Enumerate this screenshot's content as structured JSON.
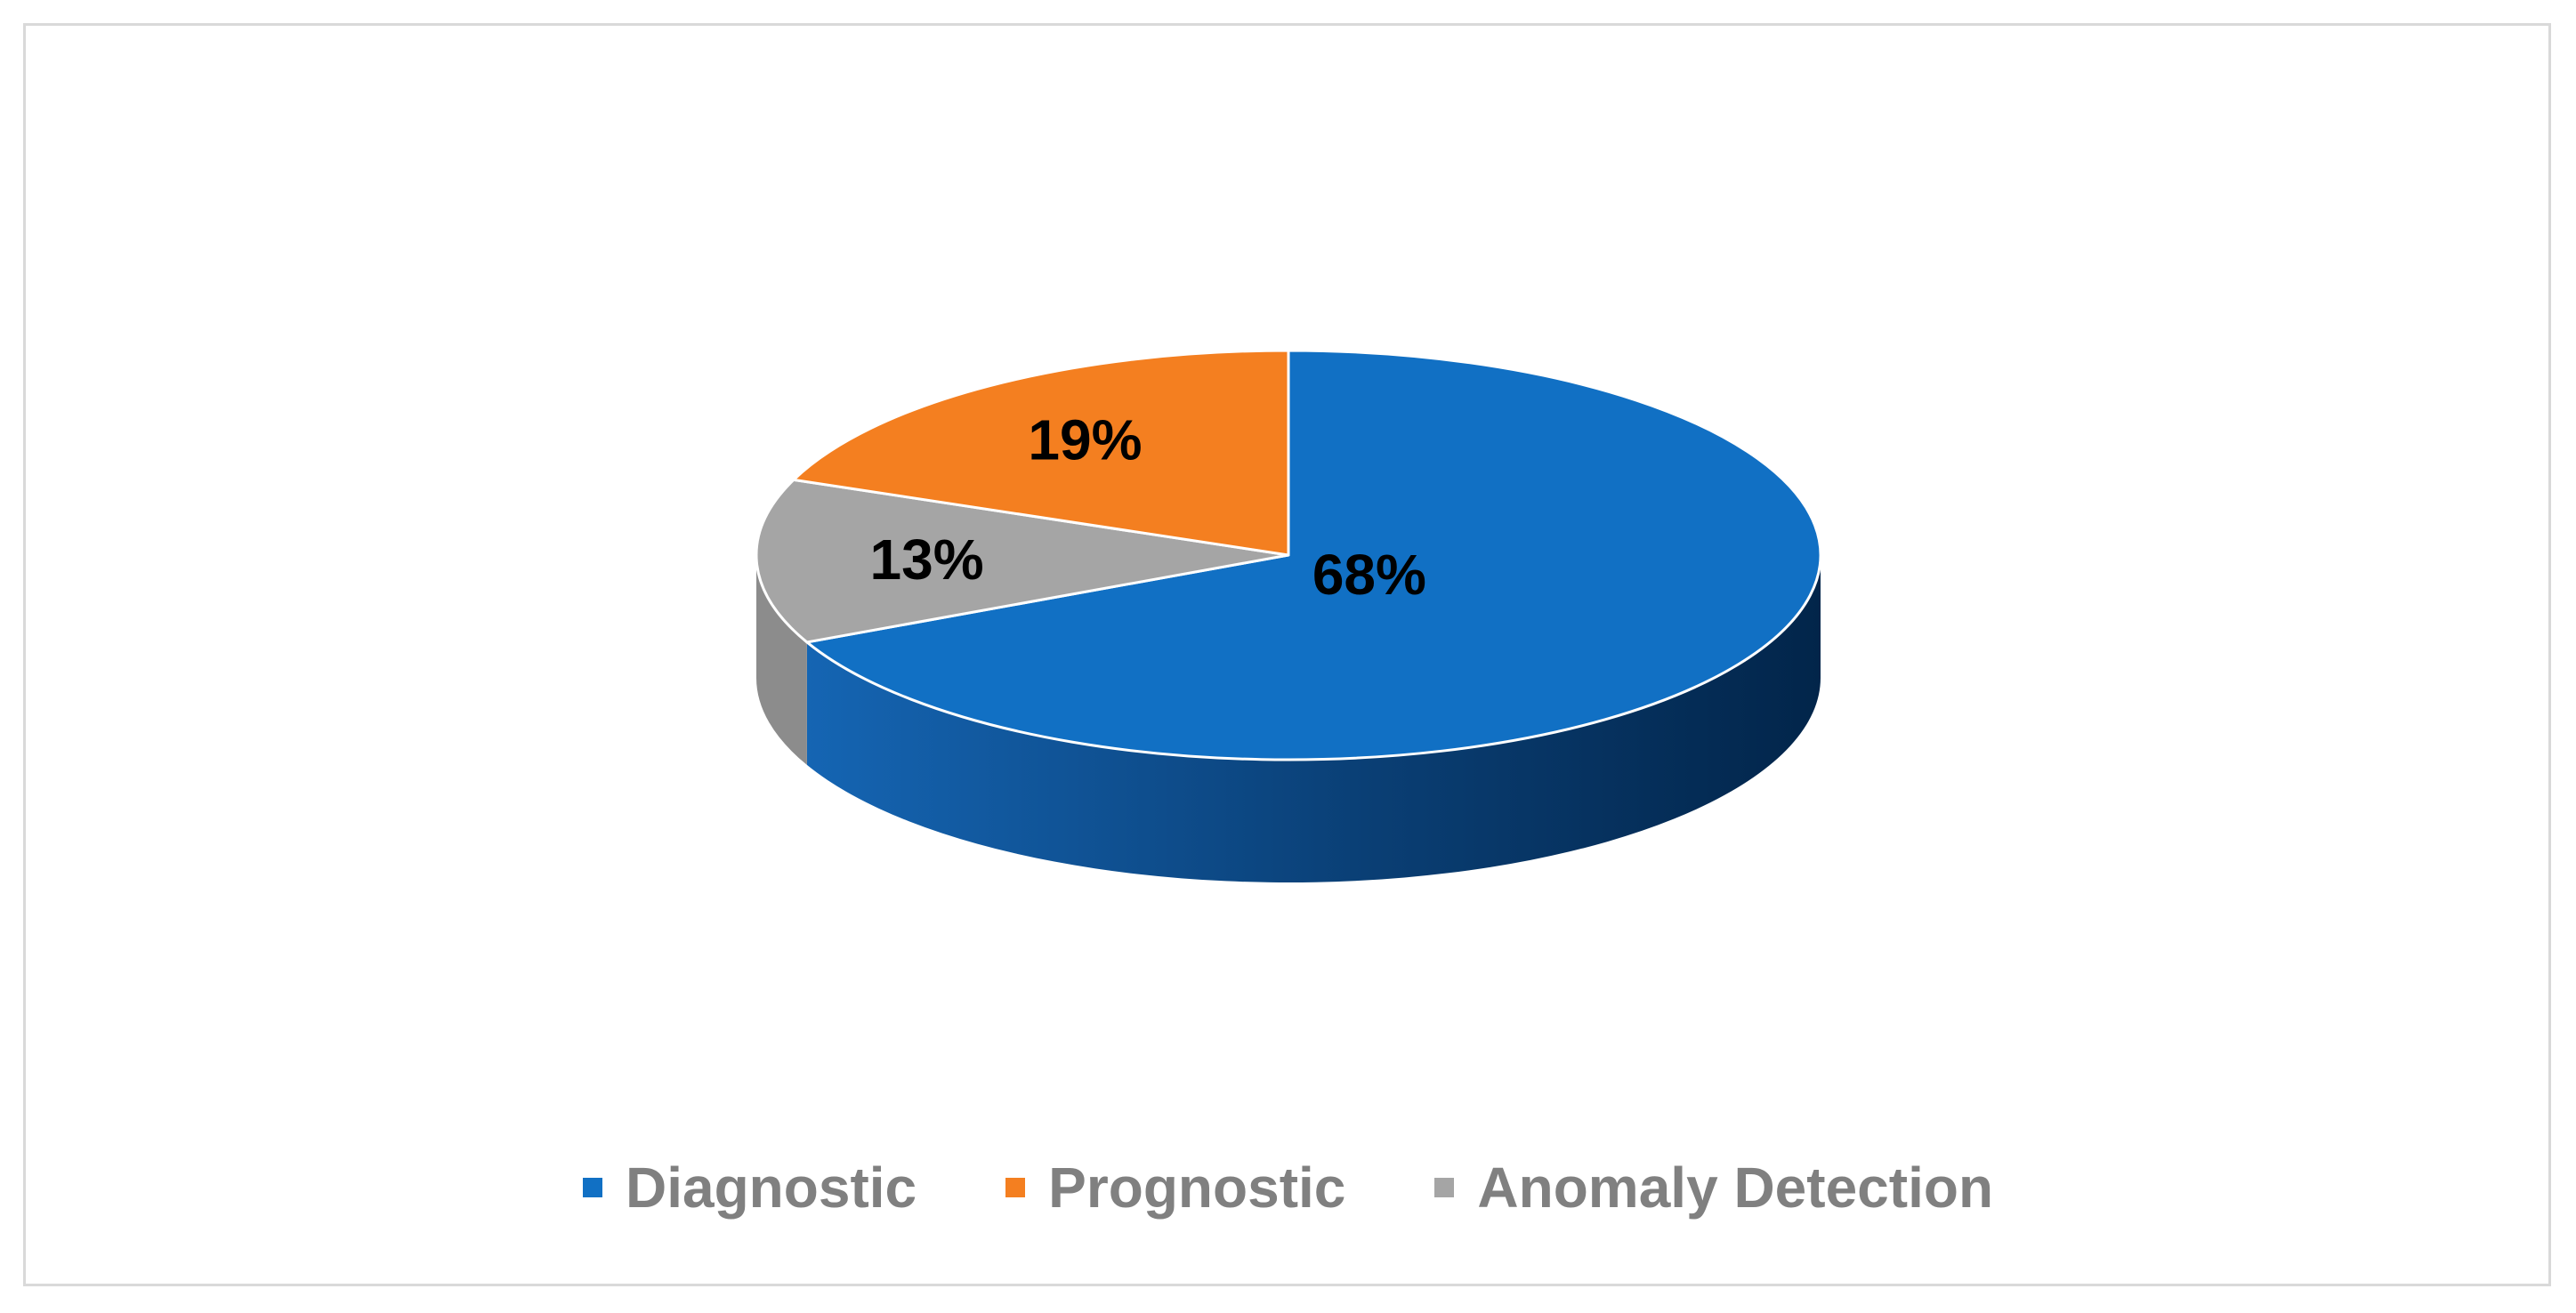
{
  "chart_data": {
    "type": "pie",
    "title": "",
    "slices": [
      {
        "name": "Diagnostic",
        "value": 68,
        "label": "68%",
        "color": "#1170C4"
      },
      {
        "name": "Prognostic",
        "value": 19,
        "label": "19%",
        "color": "#F47F20"
      },
      {
        "name": "Anomaly Detection",
        "value": 13,
        "label": "13%",
        "color": "#A5A5A5"
      }
    ],
    "legend_position": "bottom",
    "style": "3d"
  }
}
